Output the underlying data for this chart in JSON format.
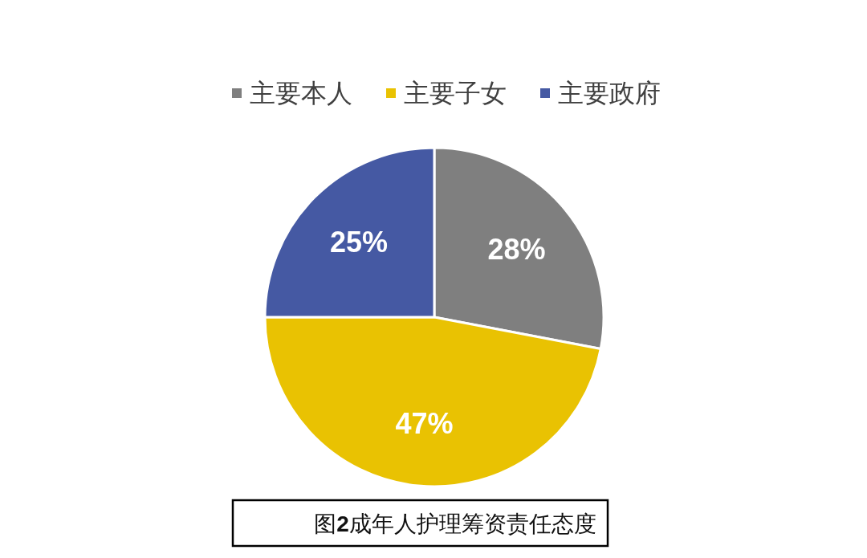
{
  "chart_data": {
    "type": "pie",
    "title": "图**2**成年人护理筹资责任态度",
    "categories": [
      "主要本人",
      "主要子女",
      "主要政府"
    ],
    "values": [
      28,
      47,
      25
    ],
    "colors": [
      "#7f7f7f",
      "#e9c202",
      "#4559a3"
    ],
    "value_labels": [
      "28%",
      "47%",
      "25%"
    ],
    "legend": "top"
  }
}
